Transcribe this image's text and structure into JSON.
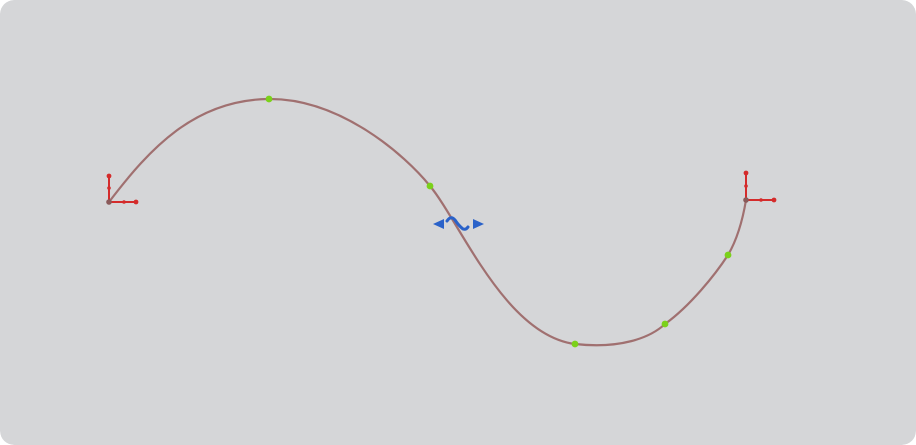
{
  "canvas": {
    "background_color": "#d5d6d8"
  },
  "spline": {
    "curve_color": "#a07070",
    "point_color": "#7bd11a",
    "point_count": 5
  },
  "triads": {
    "color": "#d42b2b",
    "origin_color": "#8a5a5a",
    "items": [
      {
        "name": "start-point-triad-icon"
      },
      {
        "name": "end-point-triad-icon"
      }
    ]
  },
  "move_handle": {
    "icon": "move-drag-handle-icon",
    "color": "#2a62c9"
  }
}
